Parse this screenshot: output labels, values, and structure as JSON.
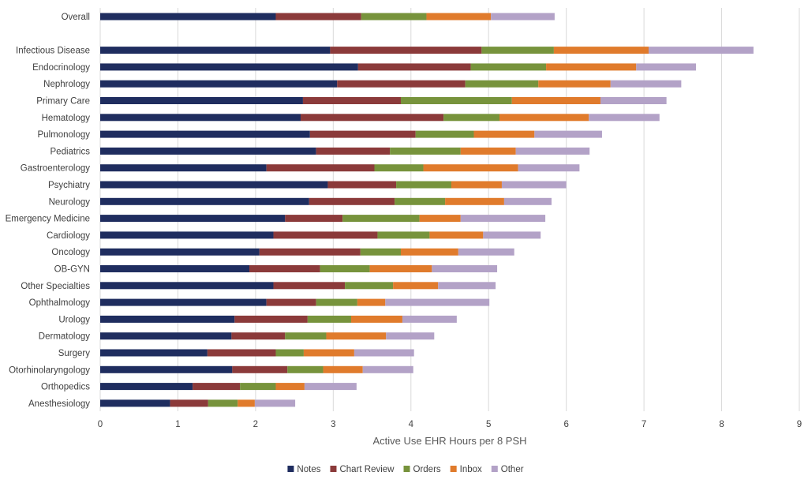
{
  "chart_data": {
    "type": "bar",
    "orientation": "horizontal",
    "stacked": true,
    "xlabel": "Active Use EHR Hours per 8 PSH",
    "ylabel": "",
    "xlim": [
      0,
      9
    ],
    "xticks": [
      "0",
      "1",
      "2",
      "3",
      "4",
      "5",
      "6",
      "7",
      "8",
      "9"
    ],
    "grid": true,
    "legend_position": "bottom",
    "categories": [
      "Overall",
      "",
      "Infectious Disease",
      "Endocrinology",
      "Nephrology",
      "Primary Care",
      "Hematology",
      "Pulmonology",
      "Pediatrics",
      "Gastroenterology",
      "Psychiatry",
      "Neurology",
      "Emergency Medicine",
      "Cardiology",
      "Oncology",
      "OB-GYN",
      "Other Specialties",
      "Ophthalmology",
      "Urology",
      "Dermatology",
      "Surgery",
      "Otorhinolaryngology",
      "Orthopedics",
      "Anesthesiology"
    ],
    "series": [
      {
        "name": "Notes",
        "color": "#1f2d5f",
        "values": [
          2.26,
          null,
          2.96,
          3.32,
          3.05,
          2.61,
          2.58,
          2.7,
          2.78,
          2.14,
          2.93,
          2.69,
          2.38,
          2.23,
          2.05,
          1.92,
          2.23,
          2.14,
          1.73,
          1.69,
          1.38,
          1.7,
          1.19,
          0.9
        ]
      },
      {
        "name": "Chart Review",
        "color": "#8b3a3a",
        "values": [
          1.1,
          null,
          1.95,
          1.45,
          1.65,
          1.26,
          1.84,
          1.36,
          0.95,
          1.39,
          0.88,
          1.1,
          0.74,
          1.34,
          1.3,
          0.91,
          0.92,
          0.64,
          0.94,
          0.69,
          0.88,
          0.71,
          0.61,
          0.49
        ]
      },
      {
        "name": "Orders",
        "color": "#77933c",
        "values": [
          0.84,
          null,
          0.93,
          0.97,
          0.94,
          1.43,
          0.72,
          0.75,
          0.91,
          0.63,
          0.71,
          0.65,
          0.99,
          0.67,
          0.52,
          0.64,
          0.62,
          0.53,
          0.56,
          0.53,
          0.36,
          0.46,
          0.46,
          0.38
        ]
      },
      {
        "name": "Inbox",
        "color": "#e07b2c",
        "values": [
          0.83,
          null,
          1.22,
          1.16,
          0.93,
          1.14,
          1.15,
          0.78,
          0.71,
          1.22,
          0.65,
          0.76,
          0.53,
          0.69,
          0.74,
          0.8,
          0.58,
          0.36,
          0.66,
          0.77,
          0.65,
          0.51,
          0.37,
          0.22
        ]
      },
      {
        "name": "Other",
        "color": "#b3a2c7",
        "values": [
          0.82,
          null,
          1.35,
          0.77,
          0.91,
          0.85,
          0.91,
          0.87,
          0.95,
          0.79,
          0.83,
          0.61,
          1.09,
          0.74,
          0.72,
          0.84,
          0.74,
          1.34,
          0.7,
          0.62,
          0.77,
          0.65,
          0.67,
          0.52
        ]
      }
    ]
  }
}
